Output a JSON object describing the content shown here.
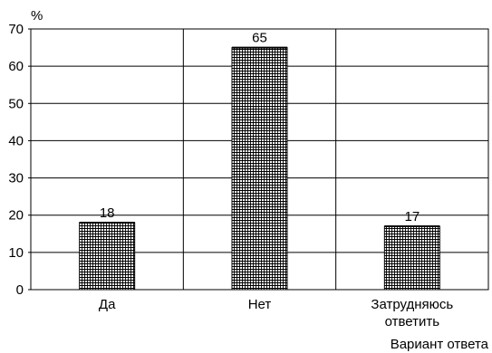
{
  "chart_data": {
    "type": "bar",
    "categories": [
      [
        "Да"
      ],
      [
        "Нет"
      ],
      [
        "Затрудняюсь",
        "ответить"
      ]
    ],
    "values": [
      18,
      65,
      17
    ],
    "data_labels": [
      "18",
      "65",
      "17"
    ],
    "ylabel": "%",
    "xlabel": "Вариант ответа",
    "ylim": [
      0,
      70
    ],
    "yticks": [
      0,
      10,
      20,
      30,
      40,
      50,
      60,
      70
    ],
    "grid": true,
    "bar_pattern": "crosshatch",
    "colors": {
      "bar_fill": "#ffffff",
      "bar_pattern": "#000000",
      "axis": "#000000",
      "grid": "#000000"
    }
  }
}
